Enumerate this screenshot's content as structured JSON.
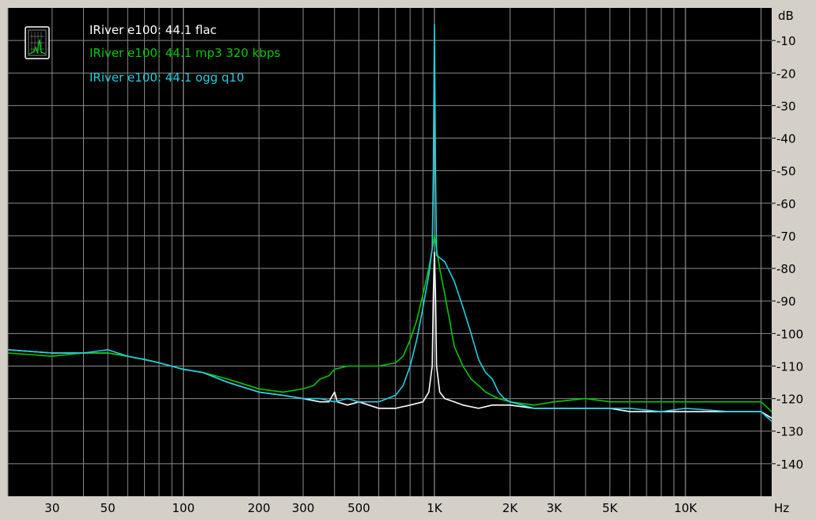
{
  "chart_data": {
    "type": "line",
    "x_scale": "log",
    "xlim": [
      20,
      22050
    ],
    "ylim": [
      -150,
      0
    ],
    "xlabel_unit": "Hz",
    "ylabel_unit": "dB",
    "x_ticks": [
      {
        "value": 30,
        "label": "30"
      },
      {
        "value": 50,
        "label": "50"
      },
      {
        "value": 100,
        "label": "100"
      },
      {
        "value": 200,
        "label": "200"
      },
      {
        "value": 300,
        "label": "300"
      },
      {
        "value": 500,
        "label": "500"
      },
      {
        "value": 1000,
        "label": "1K"
      },
      {
        "value": 2000,
        "label": "2K"
      },
      {
        "value": 3000,
        "label": "3K"
      },
      {
        "value": 5000,
        "label": "5K"
      },
      {
        "value": 10000,
        "label": "10K"
      }
    ],
    "y_ticks": [
      {
        "value": -10,
        "label": "-10"
      },
      {
        "value": -20,
        "label": "-20"
      },
      {
        "value": -30,
        "label": "-30"
      },
      {
        "value": -40,
        "label": "-40"
      },
      {
        "value": -50,
        "label": "-50"
      },
      {
        "value": -60,
        "label": "-60"
      },
      {
        "value": -70,
        "label": "-70"
      },
      {
        "value": -80,
        "label": "-80"
      },
      {
        "value": -90,
        "label": "-90"
      },
      {
        "value": -100,
        "label": "-100"
      },
      {
        "value": -110,
        "label": "-110"
      },
      {
        "value": -120,
        "label": "-120"
      },
      {
        "value": -130,
        "label": "-130"
      },
      {
        "value": -140,
        "label": "-140"
      }
    ],
    "grid": true,
    "legend_position": "top-left",
    "series": [
      {
        "name": "IRiver e100: 44.1 flac",
        "color": "#ffffff",
        "points": [
          [
            20,
            -105
          ],
          [
            30,
            -106
          ],
          [
            40,
            -106
          ],
          [
            50,
            -106
          ],
          [
            60,
            -107
          ],
          [
            70,
            -108
          ],
          [
            80,
            -109
          ],
          [
            100,
            -111
          ],
          [
            120,
            -112
          ],
          [
            150,
            -115
          ],
          [
            200,
            -118
          ],
          [
            250,
            -119
          ],
          [
            300,
            -120
          ],
          [
            350,
            -121
          ],
          [
            380,
            -121
          ],
          [
            400,
            -118
          ],
          [
            410,
            -121
          ],
          [
            450,
            -122
          ],
          [
            500,
            -121
          ],
          [
            600,
            -123
          ],
          [
            700,
            -123
          ],
          [
            800,
            -122
          ],
          [
            900,
            -121
          ],
          [
            950,
            -118
          ],
          [
            980,
            -110
          ],
          [
            990,
            -88
          ],
          [
            1000,
            -75
          ],
          [
            1010,
            -88
          ],
          [
            1020,
            -110
          ],
          [
            1050,
            -118
          ],
          [
            1100,
            -120
          ],
          [
            1200,
            -121
          ],
          [
            1300,
            -122
          ],
          [
            1500,
            -123
          ],
          [
            1700,
            -122
          ],
          [
            2000,
            -122
          ],
          [
            2500,
            -123
          ],
          [
            3000,
            -123
          ],
          [
            4000,
            -123
          ],
          [
            5000,
            -123
          ],
          [
            6000,
            -124
          ],
          [
            8000,
            -124
          ],
          [
            10000,
            -124
          ],
          [
            15000,
            -124
          ],
          [
            20000,
            -124
          ],
          [
            22050,
            -126
          ]
        ]
      },
      {
        "name": "IRiver e100:  44.1 mp3 320 kbps",
        "color": "#00c800",
        "points": [
          [
            20,
            -106
          ],
          [
            30,
            -107
          ],
          [
            40,
            -106
          ],
          [
            50,
            -106
          ],
          [
            60,
            -107
          ],
          [
            70,
            -108
          ],
          [
            80,
            -109
          ],
          [
            100,
            -111
          ],
          [
            120,
            -112
          ],
          [
            150,
            -114
          ],
          [
            200,
            -117
          ],
          [
            250,
            -118
          ],
          [
            300,
            -117
          ],
          [
            330,
            -116
          ],
          [
            350,
            -114
          ],
          [
            380,
            -113
          ],
          [
            400,
            -111
          ],
          [
            450,
            -110
          ],
          [
            500,
            -110
          ],
          [
            600,
            -110
          ],
          [
            700,
            -109
          ],
          [
            750,
            -107
          ],
          [
            800,
            -102
          ],
          [
            850,
            -96
          ],
          [
            900,
            -88
          ],
          [
            950,
            -80
          ],
          [
            980,
            -74
          ],
          [
            1000,
            -70
          ],
          [
            1020,
            -74
          ],
          [
            1050,
            -80
          ],
          [
            1100,
            -88
          ],
          [
            1150,
            -96
          ],
          [
            1200,
            -104
          ],
          [
            1300,
            -110
          ],
          [
            1400,
            -114
          ],
          [
            1500,
            -116
          ],
          [
            1600,
            -118
          ],
          [
            1800,
            -120
          ],
          [
            2000,
            -121
          ],
          [
            2500,
            -122
          ],
          [
            3000,
            -121
          ],
          [
            4000,
            -120
          ],
          [
            5000,
            -121
          ],
          [
            6000,
            -121
          ],
          [
            8000,
            -121
          ],
          [
            10000,
            -121
          ],
          [
            15000,
            -121
          ],
          [
            20000,
            -121
          ],
          [
            22050,
            -124
          ]
        ]
      },
      {
        "name": "IRiver e100: 44.1 ogg q10",
        "color": "#20d0e0",
        "points": [
          [
            20,
            -105
          ],
          [
            30,
            -106
          ],
          [
            40,
            -106
          ],
          [
            50,
            -105
          ],
          [
            60,
            -107
          ],
          [
            70,
            -108
          ],
          [
            80,
            -109
          ],
          [
            100,
            -111
          ],
          [
            120,
            -112
          ],
          [
            150,
            -115
          ],
          [
            200,
            -118
          ],
          [
            250,
            -119
          ],
          [
            300,
            -120
          ],
          [
            350,
            -120
          ],
          [
            400,
            -121
          ],
          [
            450,
            -120
          ],
          [
            500,
            -121
          ],
          [
            600,
            -121
          ],
          [
            700,
            -119
          ],
          [
            750,
            -116
          ],
          [
            800,
            -110
          ],
          [
            850,
            -102
          ],
          [
            900,
            -92
          ],
          [
            950,
            -82
          ],
          [
            980,
            -74
          ],
          [
            990,
            -50
          ],
          [
            1000,
            -5
          ],
          [
            1010,
            -50
          ],
          [
            1020,
            -76
          ],
          [
            1100,
            -78
          ],
          [
            1200,
            -84
          ],
          [
            1300,
            -92
          ],
          [
            1400,
            -100
          ],
          [
            1500,
            -108
          ],
          [
            1600,
            -112
          ],
          [
            1700,
            -114
          ],
          [
            1800,
            -118
          ],
          [
            1900,
            -120
          ],
          [
            2000,
            -121
          ],
          [
            2500,
            -123
          ],
          [
            3000,
            -123
          ],
          [
            4000,
            -123
          ],
          [
            5000,
            -123
          ],
          [
            6000,
            -123
          ],
          [
            8000,
            -124
          ],
          [
            10000,
            -123
          ],
          [
            15000,
            -124
          ],
          [
            20000,
            -124
          ],
          [
            22050,
            -127
          ]
        ]
      }
    ]
  },
  "legend_icon": "spectrum-analyzer-icon"
}
